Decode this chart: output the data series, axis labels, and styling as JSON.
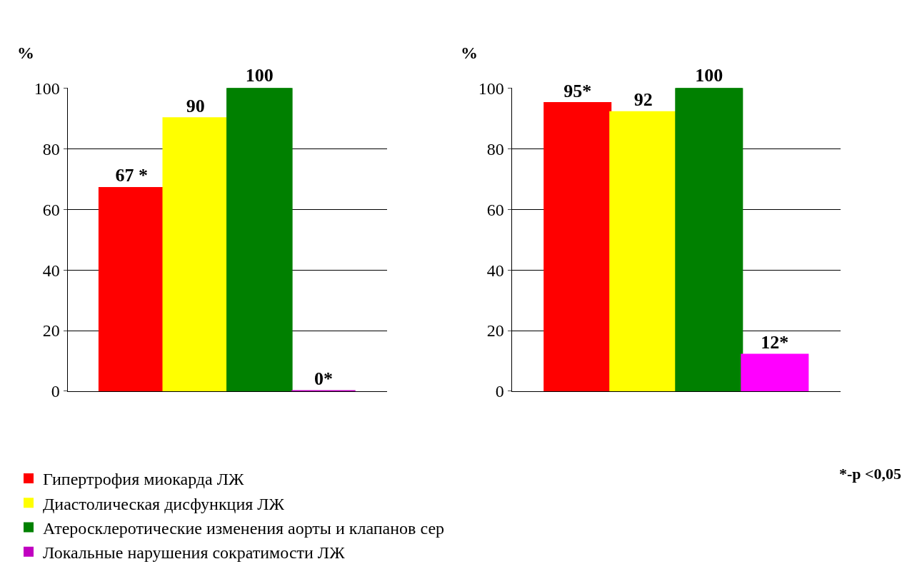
{
  "chart_data": [
    {
      "type": "bar",
      "ylabel": "%",
      "categories": [
        null
      ],
      "ylim": [
        0,
        100
      ],
      "yticks": [
        0,
        20,
        40,
        60,
        80,
        100
      ],
      "grid": "y",
      "legend": "bottom",
      "series": [
        {
          "name": "Гипертрофия миокарда ЛЖ",
          "color": "#ff0000",
          "values": [
            67
          ],
          "value_labels": [
            "67 *"
          ]
        },
        {
          "name": "Диастолическая дисфункция ЛЖ",
          "color": "#ffff00",
          "values": [
            90
          ],
          "value_labels": [
            "90"
          ]
        },
        {
          "name": "Атеросклеротические изменения аорты и клапанов сер",
          "color": "#008000",
          "values": [
            100
          ],
          "value_labels": [
            "100"
          ]
        },
        {
          "name": "Локальные нарушения сократимости ЛЖ",
          "color": "#c000c0",
          "values": [
            0
          ],
          "value_labels": [
            "0*"
          ]
        }
      ]
    },
    {
      "type": "bar",
      "ylabel": "%",
      "categories": [
        null
      ],
      "ylim": [
        0,
        100
      ],
      "yticks": [
        0,
        20,
        40,
        60,
        80,
        100
      ],
      "grid": "y",
      "annotations": [
        "*-p <0,05"
      ],
      "series": [
        {
          "color": "#ff0000",
          "values": [
            95
          ],
          "value_labels": [
            "95*"
          ]
        },
        {
          "color": "#ffff00",
          "values": [
            92
          ],
          "value_labels": [
            "92"
          ]
        },
        {
          "color": "#008000",
          "values": [
            100
          ],
          "value_labels": [
            "100"
          ]
        },
        {
          "color": "#ff00ff",
          "values": [
            12
          ],
          "value_labels": [
            "12*"
          ]
        }
      ]
    }
  ]
}
